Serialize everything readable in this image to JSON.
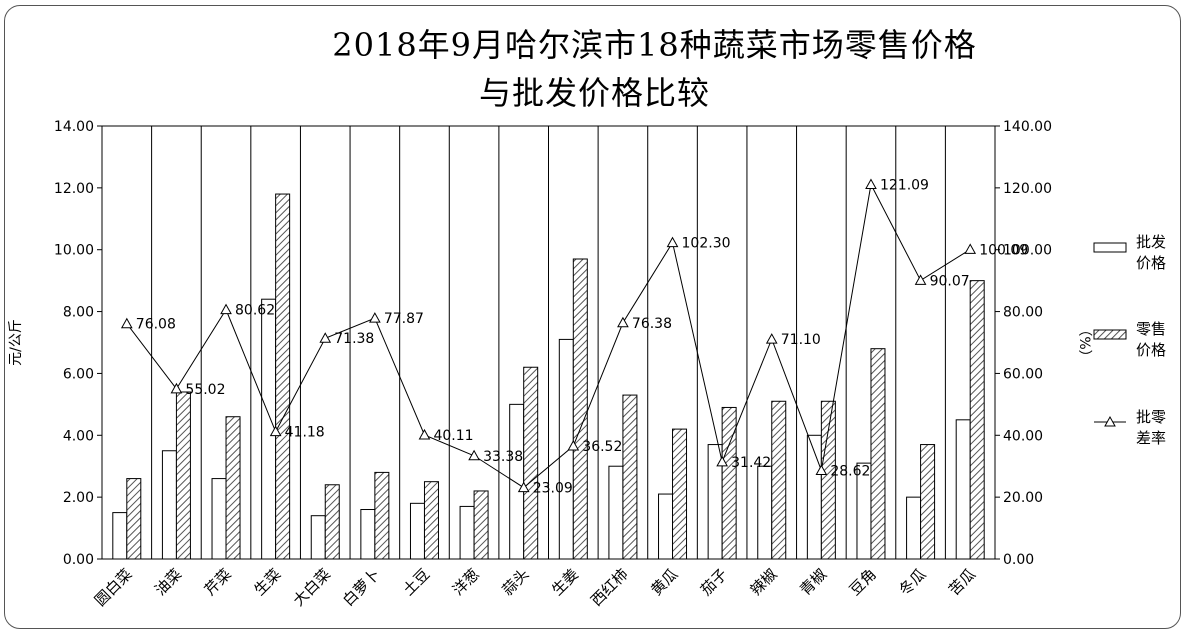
{
  "chart_data": {
    "type": "bar",
    "title_line1": "2018年9月哈尔滨市18种蔬菜市场零售价格",
    "title_line2": "与批发价格比较",
    "ylabel_left": "元/公斤",
    "ylabel_right": "（%）",
    "ylim_left": [
      0,
      14
    ],
    "ylim_right": [
      0,
      140
    ],
    "yticks_left": [
      "0.00",
      "2.00",
      "4.00",
      "6.00",
      "8.00",
      "10.00",
      "12.00",
      "14.00"
    ],
    "yticks_right": [
      "0.00",
      "20.00",
      "40.00",
      "60.00",
      "80.00",
      "100.00",
      "120.00",
      "140.00"
    ],
    "categories": [
      "圆白菜",
      "油菜",
      "芹菜",
      "生菜",
      "大白菜",
      "白萝卜",
      "土豆",
      "洋葱",
      "蒜头",
      "生姜",
      "西红柿",
      "黄瓜",
      "茄子",
      "辣椒",
      "青椒",
      "豆角",
      "冬瓜",
      "苦瓜"
    ],
    "series": [
      {
        "name": "批发价格",
        "type": "bar",
        "axis": "left",
        "values": [
          1.5,
          3.5,
          2.6,
          8.4,
          1.4,
          1.6,
          1.8,
          1.7,
          5.0,
          7.1,
          3.0,
          2.1,
          3.7,
          3.0,
          4.0,
          3.1,
          2.0,
          4.5
        ]
      },
      {
        "name": "零售价格",
        "type": "bar",
        "axis": "left",
        "values": [
          2.6,
          5.4,
          4.6,
          11.8,
          2.4,
          2.8,
          2.5,
          2.2,
          6.2,
          9.7,
          5.3,
          4.2,
          4.9,
          5.1,
          5.1,
          6.8,
          3.7,
          9.0
        ]
      },
      {
        "name": "批零差率",
        "type": "line",
        "axis": "right",
        "values": [
          76.08,
          55.02,
          80.62,
          41.18,
          71.38,
          77.87,
          40.11,
          33.38,
          23.09,
          36.52,
          76.38,
          102.3,
          31.42,
          71.1,
          28.62,
          121.09,
          90.07,
          100.09
        ],
        "labels": [
          "76.08",
          "55.02",
          "80.62",
          "41.18",
          "71.38",
          "77.87",
          "40.11",
          "33.38",
          "23.09",
          "36.52",
          "76.38",
          "102.30",
          "31.42",
          "71.10",
          "28.62",
          "121.09",
          "90.07",
          "100.09"
        ]
      }
    ],
    "legend": [
      {
        "line1": "批发",
        "line2": "价格"
      },
      {
        "line1": "零售",
        "line2": "价格"
      },
      {
        "line1": "批零",
        "line2": "差率"
      }
    ],
    "legend_position": "right",
    "grid": "vertical"
  }
}
